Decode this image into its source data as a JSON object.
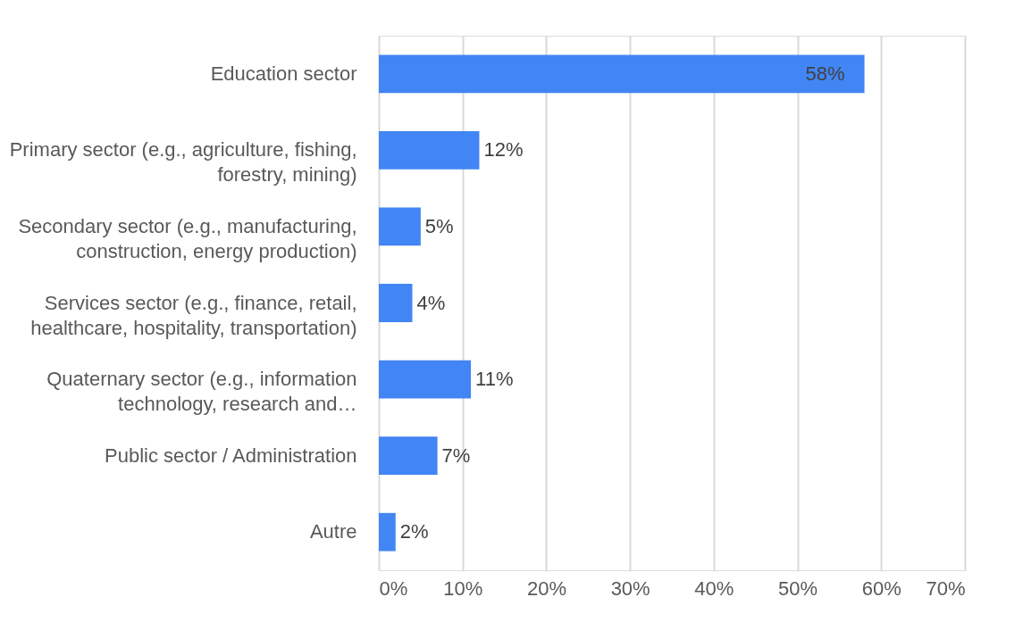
{
  "chart_data": {
    "type": "bar",
    "orientation": "horizontal",
    "categories": [
      "Education sector",
      "Primary sector (e.g., agriculture, fishing, forestry, mining)",
      "Secondary sector (e.g., manufacturing, construction, energy production)",
      "Services sector (e.g., finance, retail, healthcare, hospitality, transportation)",
      "Quaternary sector (e.g., information technology, research and…",
      "Public sector / Administration",
      "Autre"
    ],
    "values": [
      58,
      12,
      5,
      4,
      11,
      7,
      2
    ],
    "value_labels": [
      "58%",
      "12%",
      "5%",
      "4%",
      "11%",
      "7%",
      "2%"
    ],
    "color": "#4285f4",
    "xlim": [
      0,
      70
    ],
    "xticks": [
      {
        "value": 0,
        "label": "0%"
      },
      {
        "value": 10,
        "label": "10%"
      },
      {
        "value": 20,
        "label": "20%"
      },
      {
        "value": 30,
        "label": "30%"
      },
      {
        "value": 40,
        "label": "40%"
      },
      {
        "value": 50,
        "label": "50%"
      },
      {
        "value": 60,
        "label": "60%"
      },
      {
        "value": 70,
        "label": "70%"
      }
    ],
    "grid": "x"
  }
}
